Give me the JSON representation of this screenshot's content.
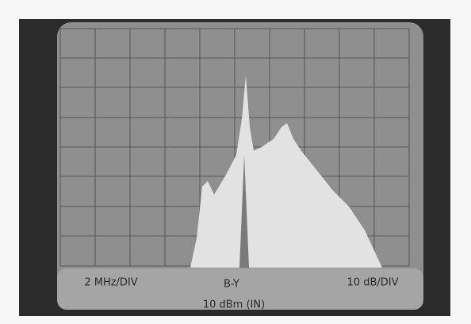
{
  "screen": {
    "labels": {
      "horizontal_scale": "2 MHz/DIV",
      "marker": "B-Y",
      "vertical_scale": "10 dB/DIV",
      "reference_level": "10 dBm (IN)"
    }
  }
}
